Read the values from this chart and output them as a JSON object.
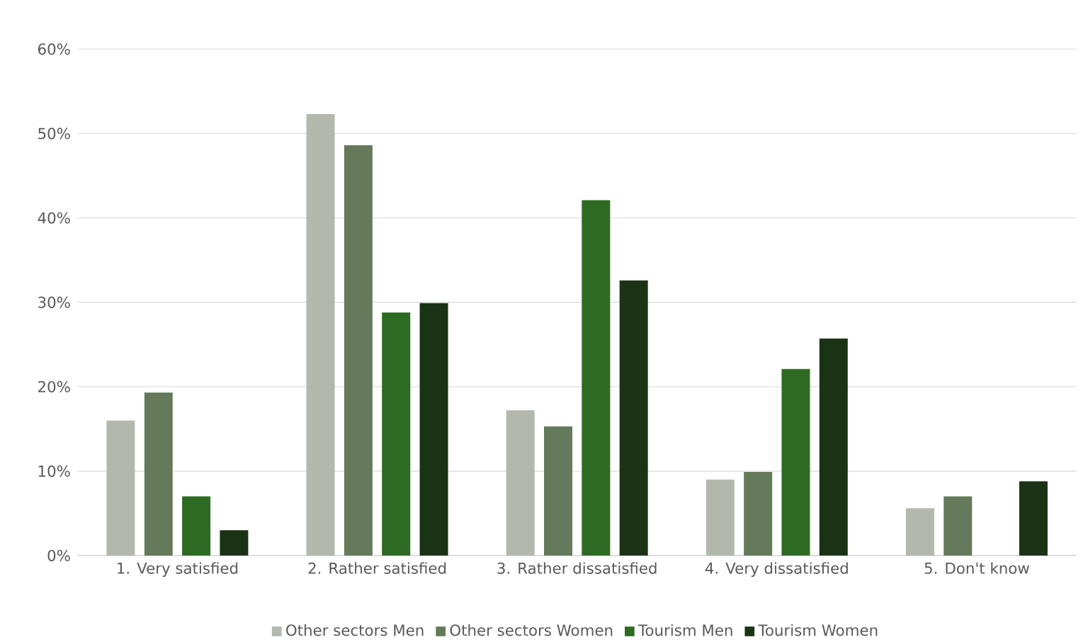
{
  "chart_data": {
    "type": "bar",
    "categories": [
      "1. Very satisfied",
      "2. Rather satisfied",
      "3. Rather dissatisfied",
      "4. Very dissatisfied",
      "5. Don't know"
    ],
    "series": [
      {
        "name": "Other sectors Men",
        "color": "#b3b8ad",
        "values": [
          16.0,
          52.3,
          17.2,
          9.0,
          5.6
        ]
      },
      {
        "name": "Other sectors Women",
        "color": "#647a5a",
        "values": [
          19.3,
          48.6,
          15.3,
          9.9,
          7.0
        ]
      },
      {
        "name": "Tourism Men",
        "color": "#2e6b22",
        "values": [
          7.0,
          28.8,
          42.1,
          22.1,
          null
        ]
      },
      {
        "name": "Tourism Women",
        "color": "#1a3315",
        "values": [
          3.0,
          29.9,
          32.6,
          25.7,
          8.8
        ]
      }
    ],
    "ylim": [
      0,
      60
    ],
    "yticks": [
      {
        "value": 0,
        "label": "0%"
      },
      {
        "value": 10,
        "label": "10%"
      },
      {
        "value": 20,
        "label": "20%"
      },
      {
        "value": 30,
        "label": "30%"
      },
      {
        "value": 40,
        "label": "40%"
      },
      {
        "value": 50,
        "label": "50%"
      },
      {
        "value": 60,
        "label": "60%"
      }
    ],
    "grid": "y",
    "legend": "bottom"
  }
}
